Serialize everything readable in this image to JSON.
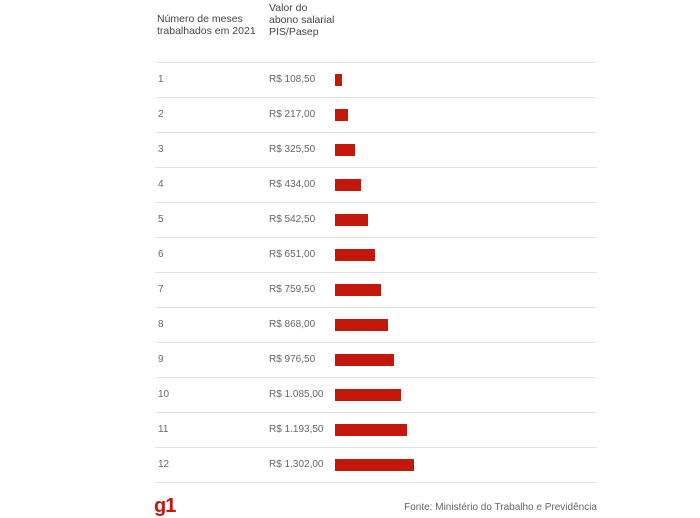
{
  "header": {
    "col1": "Número de meses trabalhados em 2021",
    "col2": "Valor do abono salarial PIS/Pasep"
  },
  "chart_data": {
    "type": "bar",
    "orientation": "horizontal",
    "categories": [
      "1",
      "2",
      "3",
      "4",
      "5",
      "6",
      "7",
      "8",
      "9",
      "10",
      "11",
      "12"
    ],
    "values": [
      108.5,
      217.0,
      325.5,
      434.0,
      542.5,
      651.0,
      759.5,
      868.0,
      976.5,
      1085.0,
      1193.5,
      1302.0
    ],
    "value_labels": [
      "R$ 108,50",
      "R$ 217,00",
      "R$ 325,50",
      "R$ 434,00",
      "R$ 542,50",
      "R$ 651,00",
      "R$ 759,50",
      "R$ 868,00",
      "R$ 976,50",
      "R$ 1.085,00",
      "R$ 1.193,50",
      "R$ 1.302,00"
    ],
    "bar_color": "#c4170c",
    "grid": false
  },
  "footer": {
    "logo": "g1",
    "source": "Fonte: Ministério do Trabalho e Previdência"
  }
}
